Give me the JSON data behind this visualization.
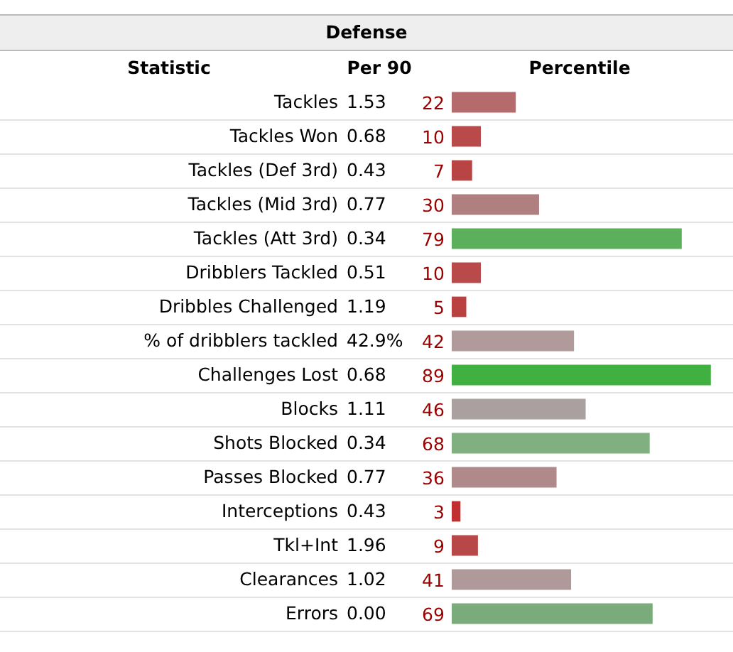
{
  "chart_data": [
    {
      "type": "other",
      "title": "Defense",
      "ylabel": "Statistic",
      "xlabel": "Per 90",
      "categories": [
        "Tackles",
        "Tackles Won",
        "Tackles (Def 3rd)",
        "Tackles (Mid 3rd)",
        "Tackles (Att 3rd)",
        "Dribblers Tackled",
        "Dribbles Challenged",
        "% of dribblers tackled",
        "Challenges Lost",
        "Blocks",
        "Shots Blocked",
        "Passes Blocked",
        "Interceptions",
        "Tkl+Int",
        "Clearances",
        "Errors"
      ],
      "value_labels": [
        "1.53",
        "0.68",
        "0.43",
        "0.77",
        "0.34",
        "0.51",
        "1.19",
        "42.9%",
        "0.68",
        "1.11",
        "0.34",
        "0.77",
        "0.43",
        "1.96",
        "1.02",
        "0.00"
      ]
    },
    {
      "type": "bar",
      "orientation": "horizontal",
      "xlabel": "Percentile",
      "categories": [
        null,
        null,
        null,
        null,
        null,
        null,
        null,
        null,
        null,
        null,
        null,
        null,
        null,
        null,
        null,
        null
      ],
      "values": [
        22,
        10,
        7,
        30,
        79,
        10,
        5,
        42,
        89,
        46,
        68,
        36,
        3,
        9,
        41,
        69
      ],
      "colors": [
        "#b56b6b",
        "#b84a4a",
        "#b84444",
        "#b08080",
        "#5cb05c",
        "#b84a4a",
        "#bb4040",
        "#b09a9a",
        "#40b040",
        "#aaa0a0",
        "#80b080",
        "#b08a8a",
        "#c03030",
        "#b84848",
        "#b09999",
        "#7aab7a"
      ],
      "data_labels": true
    }
  ]
}
